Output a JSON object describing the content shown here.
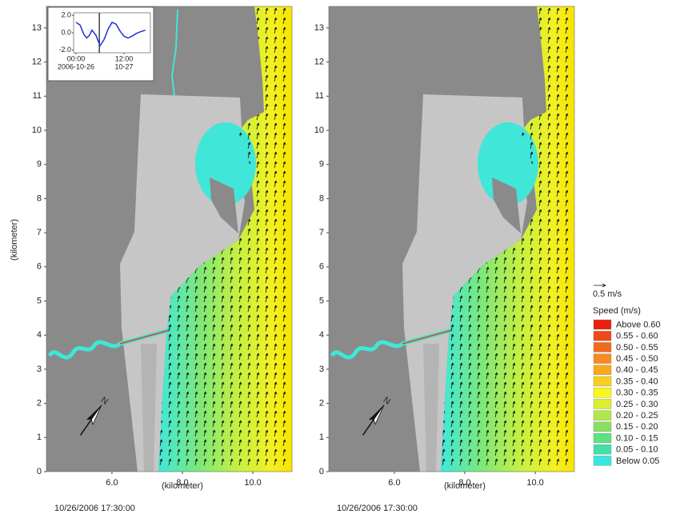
{
  "y_axis_label": "(kilometer)",
  "north_label": "N",
  "panels": [
    {
      "x_axis_label": "(kilometer)",
      "timestamp": "10/26/2006 17:30:00",
      "xlim": [
        4.14,
        11.11
      ],
      "xticks": [
        {
          "value": 6,
          "label": "6.0"
        },
        {
          "value": 8,
          "label": "8.0"
        },
        {
          "value": 10,
          "label": "10.0"
        }
      ],
      "ylim": [
        0,
        13.63
      ],
      "yticks": [
        0,
        1,
        2,
        3,
        4,
        5,
        6,
        7,
        8,
        9,
        10,
        11,
        12,
        13
      ]
    },
    {
      "x_axis_label": "(kilometer)",
      "timestamp": "10/26/2006 17:30:00",
      "xlim": [
        4.14,
        11.11
      ],
      "xticks": [
        {
          "value": 6,
          "label": "6.0"
        },
        {
          "value": 8,
          "label": "8.0"
        },
        {
          "value": 10,
          "label": "10.0"
        }
      ],
      "ylim": [
        0,
        13.63
      ],
      "yticks": [
        0,
        1,
        2,
        3,
        4,
        5,
        6,
        7,
        8,
        9,
        10,
        11,
        12,
        13
      ]
    }
  ],
  "inset": {
    "type": "line",
    "color": "#2030e0",
    "x": [
      0,
      3,
      6,
      8,
      10,
      12,
      15,
      18,
      21,
      24,
      27,
      30,
      33,
      36,
      39,
      42,
      45,
      48,
      52
    ],
    "values": [
      1.2,
      0.9,
      -0.2,
      -0.6,
      -0.3,
      0.3,
      -0.3,
      -1.5,
      -0.8,
      0.4,
      1.2,
      1.0,
      0.2,
      -0.4,
      -0.6,
      -0.4,
      -0.1,
      0.1,
      0.3
    ],
    "time_marker": 17.5,
    "xlim": [
      -1.8,
      55.8
    ],
    "xticks": [
      {
        "value": 0,
        "label": "00:00"
      },
      {
        "value": 36,
        "label": "12:00"
      }
    ],
    "x_tick_dates": [
      "2006-10-26",
      "10-27"
    ],
    "ylim": [
      -2.3,
      2.3
    ],
    "yticks": [
      {
        "value": 2,
        "label": "2.0"
      },
      {
        "value": 0,
        "label": "0.0"
      },
      {
        "value": -2,
        "label": "-2.0"
      }
    ]
  },
  "legend": {
    "vector_label": "0.5 m/s",
    "title": "Speed (m/s)",
    "entries": [
      {
        "label": "Above 0.60",
        "color": "#e82010"
      },
      {
        "label": "0.55 - 0.60",
        "color": "#f04818"
      },
      {
        "label": "0.50 - 0.55",
        "color": "#f06a20"
      },
      {
        "label": "0.45 - 0.50",
        "color": "#f88a20"
      },
      {
        "label": "0.40 - 0.45",
        "color": "#f8aa18"
      },
      {
        "label": "0.35 - 0.40",
        "color": "#f8d018"
      },
      {
        "label": "0.30 - 0.35",
        "color": "#f8f818"
      },
      {
        "label": "0.25 - 0.30",
        "color": "#d8f030"
      },
      {
        "label": "0.20 - 0.25",
        "color": "#b0e848"
      },
      {
        "label": "0.15 - 0.20",
        "color": "#88e060"
      },
      {
        "label": "0.10 - 0.15",
        "color": "#60e080"
      },
      {
        "label": "0.05 - 0.10",
        "color": "#40e0a8"
      },
      {
        "label": "Below 0.05",
        "color": "#38e8e0"
      }
    ]
  }
}
